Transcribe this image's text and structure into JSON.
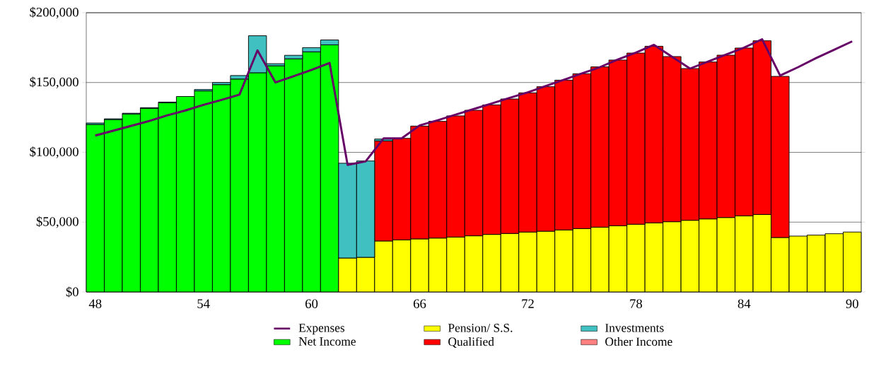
{
  "chart_data": {
    "type": "bar",
    "stacked": true,
    "grid": "y",
    "legend": "bottom",
    "categories": [
      "48",
      null,
      null,
      null,
      null,
      null,
      "54",
      null,
      null,
      null,
      null,
      null,
      "60",
      null,
      null,
      null,
      null,
      null,
      "66",
      null,
      null,
      null,
      null,
      null,
      "72",
      null,
      null,
      null,
      null,
      null,
      "78",
      null,
      null,
      null,
      null,
      null,
      "84",
      null,
      null,
      null,
      null,
      null,
      "90"
    ],
    "ylim": [
      0,
      200000
    ],
    "yticks": [
      {
        "value": 0,
        "label": "$0"
      },
      {
        "value": 50000,
        "label": "$50,000"
      },
      {
        "value": 100000,
        "label": "$100,000"
      },
      {
        "value": 150000,
        "label": "$150,000"
      },
      {
        "value": 200000,
        "label": "$200,000"
      }
    ],
    "series": [
      {
        "name": "Expenses",
        "type": "line",
        "color": "#660066",
        "values": [
          112000,
          115500,
          119000,
          122500,
          126500,
          130000,
          134000,
          137500,
          141300,
          173000,
          150000,
          154500,
          159000,
          164000,
          91000,
          93500,
          110000,
          110000,
          119300,
          123000,
          127000,
          131000,
          135000,
          139000,
          143000,
          147500,
          152000,
          156500,
          161000,
          166500,
          171500,
          177000,
          168500,
          160000,
          165000,
          170000,
          175000,
          181000,
          155000,
          161000,
          167500,
          173500,
          179500
        ]
      },
      {
        "name": "Net Income",
        "color": "#00ff00",
        "values": [
          120000,
          123500,
          127500,
          131500,
          135500,
          140000,
          144000,
          148500,
          152500,
          157000,
          162000,
          167000,
          172000,
          177000,
          null,
          null,
          null,
          null,
          null,
          null,
          null,
          null,
          null,
          null,
          null,
          null,
          null,
          null,
          null,
          null,
          null,
          null,
          null,
          null,
          null,
          null,
          null,
          null,
          null,
          null,
          null,
          null,
          null
        ]
      },
      {
        "name": "Pension/ S.S.",
        "color": "#ffff00",
        "values": [
          null,
          null,
          null,
          null,
          null,
          null,
          null,
          null,
          null,
          null,
          null,
          null,
          null,
          null,
          24300,
          24800,
          36500,
          37300,
          38000,
          38600,
          39300,
          40200,
          41200,
          41900,
          42900,
          43500,
          44400,
          45400,
          46400,
          47400,
          48500,
          49500,
          50300,
          51300,
          52300,
          53300,
          54500,
          55500,
          39000,
          40000,
          40700,
          41700,
          42900
        ]
      },
      {
        "name": "Qualified",
        "color": "#ff0000",
        "values": [
          null,
          null,
          null,
          null,
          null,
          null,
          null,
          null,
          null,
          null,
          null,
          null,
          null,
          null,
          null,
          null,
          71700,
          72700,
          80800,
          83600,
          86800,
          89900,
          92800,
          96300,
          99700,
          103500,
          107300,
          110900,
          114800,
          118700,
          122600,
          126500,
          118300,
          108700,
          112400,
          116300,
          120200,
          124400,
          115400,
          null,
          null,
          null,
          null
        ]
      },
      {
        "name": "Investments",
        "color": "#40c0c0",
        "values": [
          1000,
          500,
          500,
          500,
          500,
          null,
          1000,
          1500,
          2500,
          26500,
          1500,
          2500,
          3000,
          3500,
          67900,
          69000,
          1300,
          null,
          null,
          null,
          null,
          null,
          null,
          null,
          null,
          null,
          null,
          null,
          null,
          null,
          null,
          null,
          null,
          null,
          null,
          null,
          null,
          null,
          null,
          null,
          null,
          null,
          null
        ]
      },
      {
        "name": "Other Income",
        "color": "#ff8080",
        "values": [
          null,
          null,
          null,
          null,
          null,
          null,
          null,
          null,
          null,
          null,
          null,
          null,
          null,
          null,
          null,
          null,
          null,
          null,
          null,
          null,
          null,
          null,
          null,
          null,
          null,
          null,
          null,
          null,
          null,
          null,
          null,
          null,
          null,
          null,
          null,
          null,
          null,
          null,
          null,
          null,
          null,
          null,
          null
        ]
      }
    ]
  }
}
